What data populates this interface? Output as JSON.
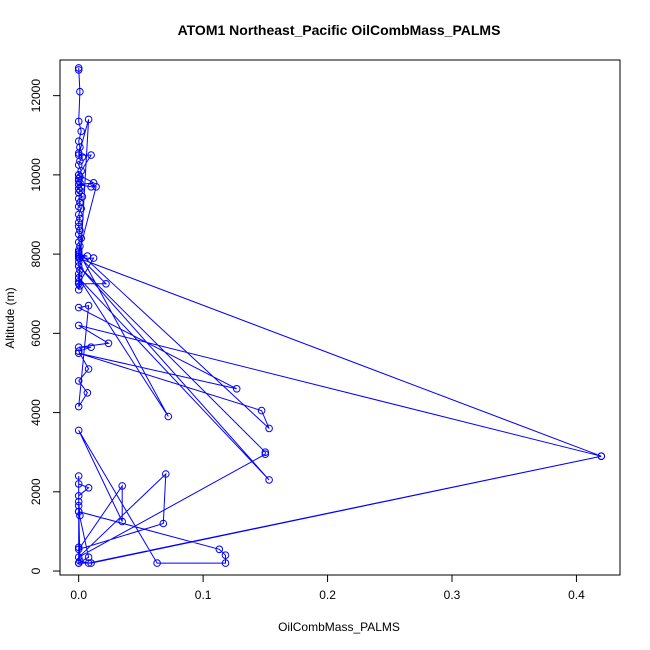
{
  "chart_data": {
    "type": "line",
    "title": "ATOM1 Northeast_Pacific OilCombMass_PALMS",
    "xlabel": "OilCombMass_PALMS",
    "ylabel": "Altitude (m)",
    "xlim": [
      -0.015,
      0.435
    ],
    "ylim": [
      -100,
      12900
    ],
    "xticks": [
      0.0,
      0.1,
      0.2,
      0.3,
      0.4
    ],
    "xtick_labels": [
      "0.0",
      "0.1",
      "0.2",
      "0.3",
      "0.4"
    ],
    "yticks": [
      0,
      2000,
      4000,
      6000,
      8000,
      10000,
      12000
    ],
    "ytick_labels": [
      "0",
      "2000",
      "4000",
      "6000",
      "8000",
      "10000",
      "12000"
    ],
    "grid": false,
    "legend": "none",
    "series": [
      {
        "color": "#0000ff",
        "marker": "open-circle",
        "x": [
          0.0,
          0.0,
          0.001,
          0.0,
          0.002,
          0.0,
          0.001,
          0.0,
          0.003,
          0.001,
          0.0,
          0.002,
          0.0,
          0.001,
          0.0,
          0.0,
          0.001,
          0.002,
          0.0,
          0.001,
          0.0,
          0.003,
          0.0,
          0.001,
          0.0,
          0.002,
          0.0,
          0.001,
          0.0,
          0.0,
          0.001,
          0.0,
          0.002,
          0.0,
          0.001,
          0.0,
          0.0,
          0.001,
          0.0,
          0.0,
          0.001,
          0.0,
          0.0,
          0.0,
          0.001,
          0.0,
          0.008,
          0.0,
          0.01,
          0.0,
          0.012,
          0.0,
          0.01,
          0.014,
          0.0,
          0.007,
          0.0,
          0.022,
          0.0,
          0.012,
          0.0,
          0.42,
          0.0,
          0.024,
          0.0,
          0.01,
          0.0,
          0.008,
          0.0,
          0.007,
          0.0,
          0.008,
          0.0,
          0.127,
          0.0,
          0.147,
          0.153,
          0.0,
          0.072,
          0.0,
          0.153,
          0.0,
          0.15,
          0.15,
          0.0,
          0.07,
          0.068,
          0.0,
          0.035,
          0.035,
          0.0,
          0.063,
          0.118,
          0.118,
          0.113,
          0.0,
          0.008,
          0.0,
          0.01,
          0.42,
          0.008,
          0.001,
          0.0,
          0.0,
          0.001,
          0.0,
          0.0,
          0.0,
          0.008,
          0.0,
          0.0,
          0.0
        ],
        "y": [
          12650,
          12700,
          12100,
          11350,
          11100,
          10850,
          10700,
          10550,
          10450,
          10350,
          10250,
          10100,
          10000,
          9950,
          9900,
          9850,
          9800,
          9700,
          9650,
          9600,
          9550,
          9450,
          9400,
          9300,
          9200,
          9150,
          9000,
          8900,
          8800,
          8700,
          8600,
          8500,
          8400,
          8300,
          8200,
          8100,
          8000,
          7900,
          7800,
          7700,
          7600,
          7500,
          7400,
          7300,
          7200,
          7100,
          11400,
          10500,
          10500,
          10000,
          9800,
          9750,
          9700,
          9700,
          8000,
          7950,
          7950,
          7250,
          7250,
          7900,
          7900,
          2900,
          6200,
          5750,
          5650,
          5650,
          5550,
          5100,
          4800,
          4500,
          4150,
          6700,
          6650,
          4600,
          5500,
          4050,
          3600,
          8050,
          3900,
          7400,
          2300,
          7700,
          3000,
          2950,
          350,
          2450,
          1200,
          550,
          2150,
          1250,
          3550,
          200,
          200,
          400,
          550,
          1500,
          350,
          200,
          200,
          2900,
          200,
          250,
          1650,
          1500,
          1400,
          1750,
          2400,
          2200,
          2100,
          1900,
          600,
          200
        ]
      }
    ]
  }
}
